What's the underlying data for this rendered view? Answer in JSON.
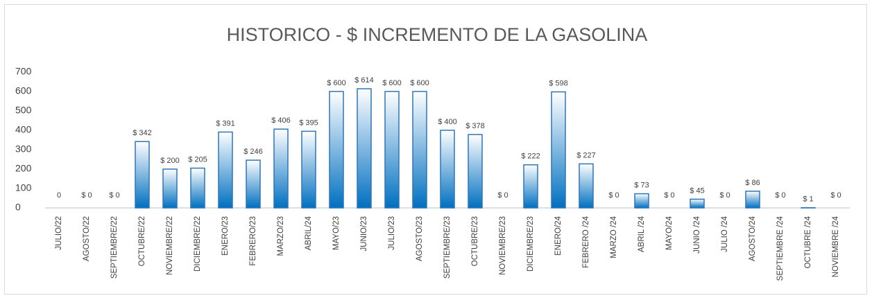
{
  "chart_data": {
    "type": "bar",
    "title": "HISTORICO - $ INCREMENTO DE LA GASOLINA",
    "categories": [
      "JULIO/22",
      "AGOSTO/22",
      "SEPTIEMBRE/22",
      "OCTUBRE/22",
      "NOVIEMBRE/22",
      "DICIEMBRE/22",
      "ENERO/23",
      "FEBRERO/23",
      "MARZO/23",
      "ABRIL/24",
      "MAYO/23",
      "JUNIO/23",
      "JULIO/23",
      "AGOSTO/23",
      "SEPTIEMBRE/23",
      "OCTUBRE/23",
      "NOVIEMBRE/23",
      "DICIEMBRE/23",
      "ENERO/24",
      "FEBRERO /24",
      "MARZO /24",
      "ABRIL /24",
      "MAYO/24",
      "JUNIO /24",
      "JULIO /24",
      "AGOSTO/24",
      "SEPTIEMBRE /24",
      "OCTUBRE /24",
      "NOVIEMBRE /24"
    ],
    "values": [
      0,
      0,
      0,
      342,
      200,
      205,
      391,
      246,
      406,
      395,
      600,
      614,
      600,
      600,
      400,
      378,
      0,
      222,
      598,
      227,
      0,
      73,
      0,
      45,
      0,
      86,
      0,
      1,
      0
    ],
    "value_labels": [
      "0",
      "$ 0",
      "$ 0",
      "$ 342",
      "$ 200",
      "$ 205",
      "$ 391",
      "$ 246",
      "$ 406",
      "$ 395",
      "$ 600",
      "$ 614",
      "$ 600",
      "$ 600",
      "$ 400",
      "$ 378",
      "$ 0",
      "$ 222",
      "$ 598",
      "$ 227",
      "$ 0",
      "$ 73",
      "$ 0",
      "$ 45",
      "$ 0",
      "$ 86",
      "$ 0",
      "$ 1",
      "$ 0"
    ],
    "color": "#0070c0",
    "ylim": [
      0,
      700
    ],
    "yticks": [
      0,
      100,
      200,
      300,
      400,
      500,
      600,
      700
    ],
    "grid": false
  }
}
